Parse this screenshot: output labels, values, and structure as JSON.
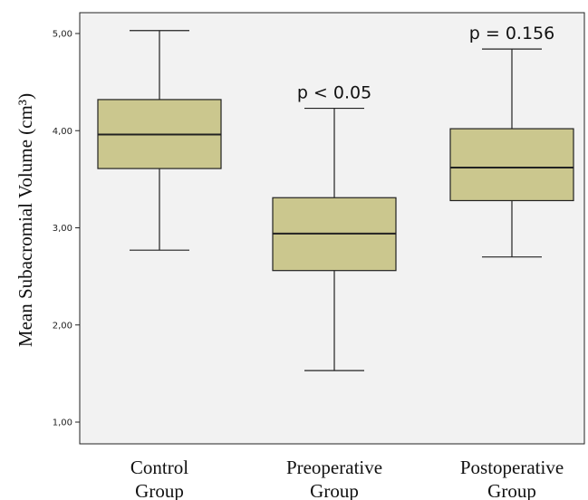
{
  "chart_data": {
    "type": "boxplot",
    "title": "",
    "ylabel": "Mean Subacromial Volume (cm³)",
    "xlabel": "",
    "ylim": [
      0.8,
      5.25
    ],
    "yticks": [
      "1,00",
      "2,00",
      "3,00",
      "4,00",
      "5,00"
    ],
    "ytick_values": [
      1,
      2,
      3,
      4,
      5
    ],
    "grid": false,
    "categories": [
      {
        "line1": "Control",
        "line2": "Group"
      },
      {
        "line1": "Preoperative",
        "line2": "Group"
      },
      {
        "line1": "Postoperative",
        "line2": "Group"
      }
    ],
    "boxes": [
      {
        "min": 2.77,
        "q1": 3.61,
        "median": 3.96,
        "q3": 4.32,
        "max": 5.03,
        "annotation": ""
      },
      {
        "min": 1.53,
        "q1": 2.56,
        "median": 2.94,
        "q3": 3.31,
        "max": 4.23,
        "annotation": "p < 0.05"
      },
      {
        "min": 2.7,
        "q1": 3.28,
        "median": 3.62,
        "q3": 4.02,
        "max": 4.84,
        "annotation": "p = 0.156"
      }
    ],
    "colors": {
      "box_fill": "#cbc78e",
      "stroke": "#222222",
      "background": "#f2f2f2"
    }
  }
}
